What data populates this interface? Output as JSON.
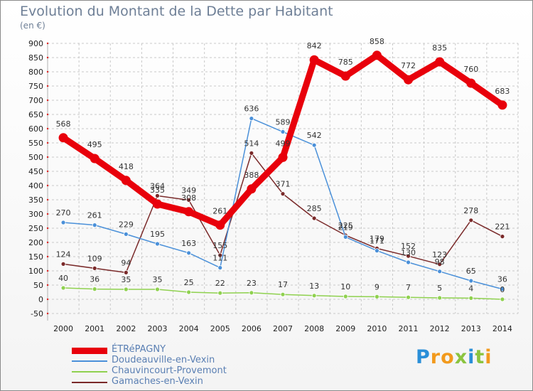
{
  "chart_data": {
    "type": "line",
    "title": "Evolution du Montant de la Dette par Habitant",
    "subtitle": "(en €)",
    "categories": [
      "2000",
      "2001",
      "2002",
      "2003",
      "2004",
      "2005",
      "2006",
      "2007",
      "2008",
      "2009",
      "2010",
      "2011",
      "2012",
      "2013",
      "2014"
    ],
    "ylim": [
      -50,
      900
    ],
    "yticks": [
      -50,
      0,
      50,
      100,
      150,
      200,
      250,
      300,
      350,
      400,
      450,
      500,
      550,
      600,
      650,
      700,
      750,
      800,
      850,
      900
    ],
    "grid": true,
    "legend_position": "bottom-left",
    "series": [
      {
        "name": "ÉTRéPAGNY",
        "color": "#e8000b",
        "values": [
          568,
          495,
          418,
          335,
          308,
          261,
          388,
          499,
          842,
          785,
          858,
          772,
          835,
          760,
          683
        ]
      },
      {
        "name": "Doudeauville-en-Vexin",
        "color": "#4a90d9",
        "values": [
          270,
          261,
          229,
          195,
          163,
          111,
          636,
          589,
          542,
          219,
          171,
          130,
          98,
          65,
          36
        ]
      },
      {
        "name": "Chauvincourt-Provemont",
        "color": "#8fd14f",
        "values": [
          40,
          36,
          35,
          35,
          25,
          22,
          23,
          17,
          13,
          10,
          9,
          7,
          5,
          4,
          0
        ]
      },
      {
        "name": "Gamaches-en-Vexin",
        "color": "#7a2a2a",
        "values": [
          124,
          109,
          94,
          364,
          349,
          155,
          514,
          371,
          285,
          225,
          179,
          152,
          123,
          278,
          221
        ]
      }
    ]
  },
  "brand": {
    "letters": [
      "P",
      "r",
      "o",
      "x",
      "i",
      "t",
      "i"
    ],
    "colors": [
      "#2a8fd8",
      "#f29a1d",
      "#f29a1d",
      "#8bc43f",
      "#2a8fd8",
      "#8bc43f",
      "#f29a1d"
    ]
  }
}
